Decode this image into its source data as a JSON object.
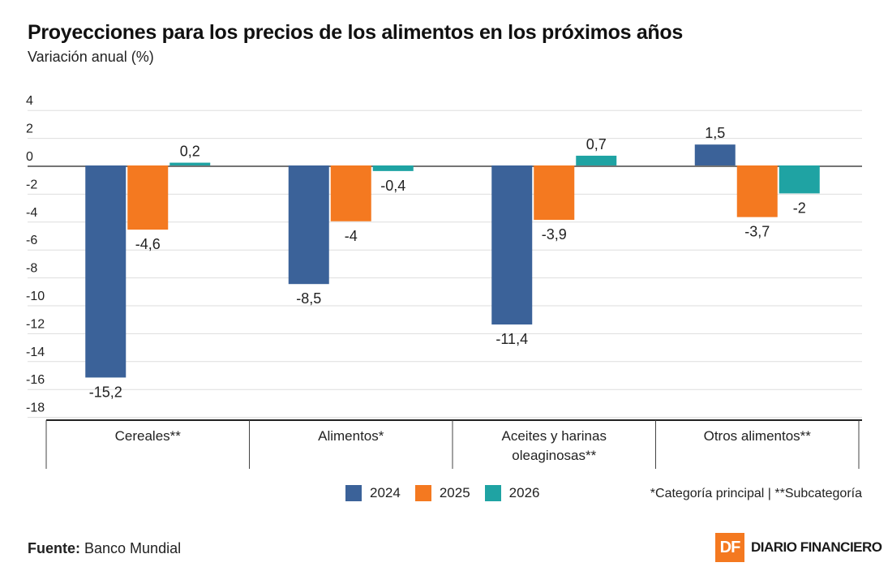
{
  "chart_data": {
    "type": "bar",
    "title": "Proyecciones para los precios de los alimentos en los próximos años",
    "subtitle": "Variación anual (%)",
    "categories": [
      [
        "Cereales**"
      ],
      [
        "Alimentos*"
      ],
      [
        "Aceites y harinas",
        "oleaginosas**"
      ],
      [
        "Otros alimentos**"
      ]
    ],
    "series": [
      {
        "name": "2024",
        "color": "#3b6299",
        "values": [
          -15.2,
          -8.5,
          -11.4,
          1.5
        ],
        "labels": [
          "-15,2",
          "-8,5",
          "-11,4",
          "1,5"
        ]
      },
      {
        "name": "2025",
        "color": "#f47920",
        "values": [
          -4.6,
          -4,
          -3.9,
          -3.7
        ],
        "labels": [
          "-4,6",
          "-4",
          "-3,9",
          "-3,7"
        ]
      },
      {
        "name": "2026",
        "color": "#1fa3a3",
        "values": [
          0.2,
          -0.4,
          0.7,
          -2
        ],
        "labels": [
          "0,2",
          "-0,4",
          "0,7",
          "-2"
        ]
      }
    ],
    "yticks": [
      4,
      2,
      0,
      -2,
      -4,
      -6,
      -8,
      -10,
      -12,
      -14,
      -16,
      -18
    ],
    "ylim": [
      -18,
      4
    ],
    "grid": true,
    "legend_position": "bottom"
  },
  "note": "*Categoría principal | **Subcategoría",
  "source": {
    "label": "Fuente:",
    "value": "Banco Mundial"
  },
  "brand": {
    "mark": "DF",
    "name": "DIARIO FINANCIERO"
  }
}
